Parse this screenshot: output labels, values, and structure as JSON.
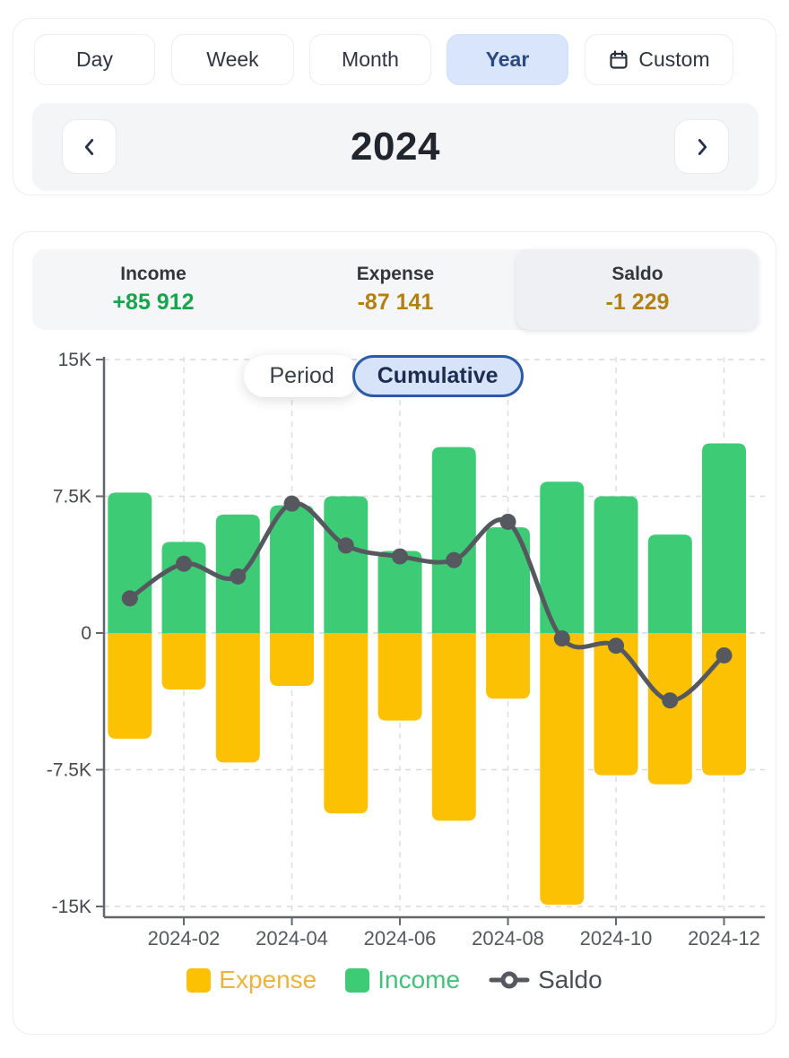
{
  "period_tabs": {
    "day": "Day",
    "week": "Week",
    "month": "Month",
    "year": "Year",
    "custom": "Custom",
    "selected": "Year"
  },
  "year_nav": {
    "value": "2024"
  },
  "summary": {
    "income": {
      "label": "Income",
      "value": "+85 912"
    },
    "expense": {
      "label": "Expense",
      "value": "-87 141"
    },
    "saldo": {
      "label": "Saldo",
      "value": "-1 229",
      "selected": true
    }
  },
  "view_toggle": {
    "period": "Period",
    "cumulative": "Cumulative",
    "selected": "Cumulative"
  },
  "chart_data": {
    "type": "bar+line",
    "categories": [
      "2024-01",
      "2024-02",
      "2024-03",
      "2024-04",
      "2024-05",
      "2024-06",
      "2024-07",
      "2024-08",
      "2024-09",
      "2024-10",
      "2024-11",
      "2024-12"
    ],
    "series": [
      {
        "name": "Income",
        "type": "bar",
        "color": "#3ecb75",
        "values": [
          7700,
          5000,
          6500,
          7000,
          7500,
          4500,
          10200,
          5800,
          8300,
          7500,
          5400,
          10400
        ]
      },
      {
        "name": "Expense",
        "type": "bar",
        "color": "#fbc102",
        "values": [
          -5800,
          -3100,
          -7100,
          -2900,
          -9900,
          -4800,
          -10300,
          -3600,
          -14900,
          -7800,
          -8300,
          -7800
        ]
      },
      {
        "name": "Saldo",
        "type": "line",
        "color": "#55585e",
        "values": [
          1900,
          3800,
          3100,
          7100,
          4800,
          4200,
          4000,
          6100,
          -300,
          -700,
          -3700,
          -1229
        ]
      }
    ],
    "y_ticks": [
      {
        "label": "15K",
        "value": 15000
      },
      {
        "label": "7.5K",
        "value": 7500
      },
      {
        "label": "0",
        "value": 0
      },
      {
        "label": "-7.5K",
        "value": -7500
      },
      {
        "label": "-15K",
        "value": -15000
      }
    ],
    "x_ticks": [
      {
        "index": 1,
        "label": "2024-02"
      },
      {
        "index": 3,
        "label": "2024-04"
      },
      {
        "index": 5,
        "label": "2024-06"
      },
      {
        "index": 7,
        "label": "2024-08"
      },
      {
        "index": 9,
        "label": "2024-10"
      },
      {
        "index": 11,
        "label": "2024-12"
      }
    ],
    "ylim": [
      -15000,
      15000
    ],
    "grid": "dashed",
    "legend_position": "bottom",
    "legend": [
      {
        "label": "Expense",
        "swatch_color": "#fbc102",
        "text_color": "#eab43d"
      },
      {
        "label": "Income",
        "swatch_color": "#3ecb75",
        "text_color": "#44c07a"
      },
      {
        "label": "Saldo",
        "swatch_color": "#55585e",
        "text_color": "#4b4e54"
      }
    ]
  }
}
